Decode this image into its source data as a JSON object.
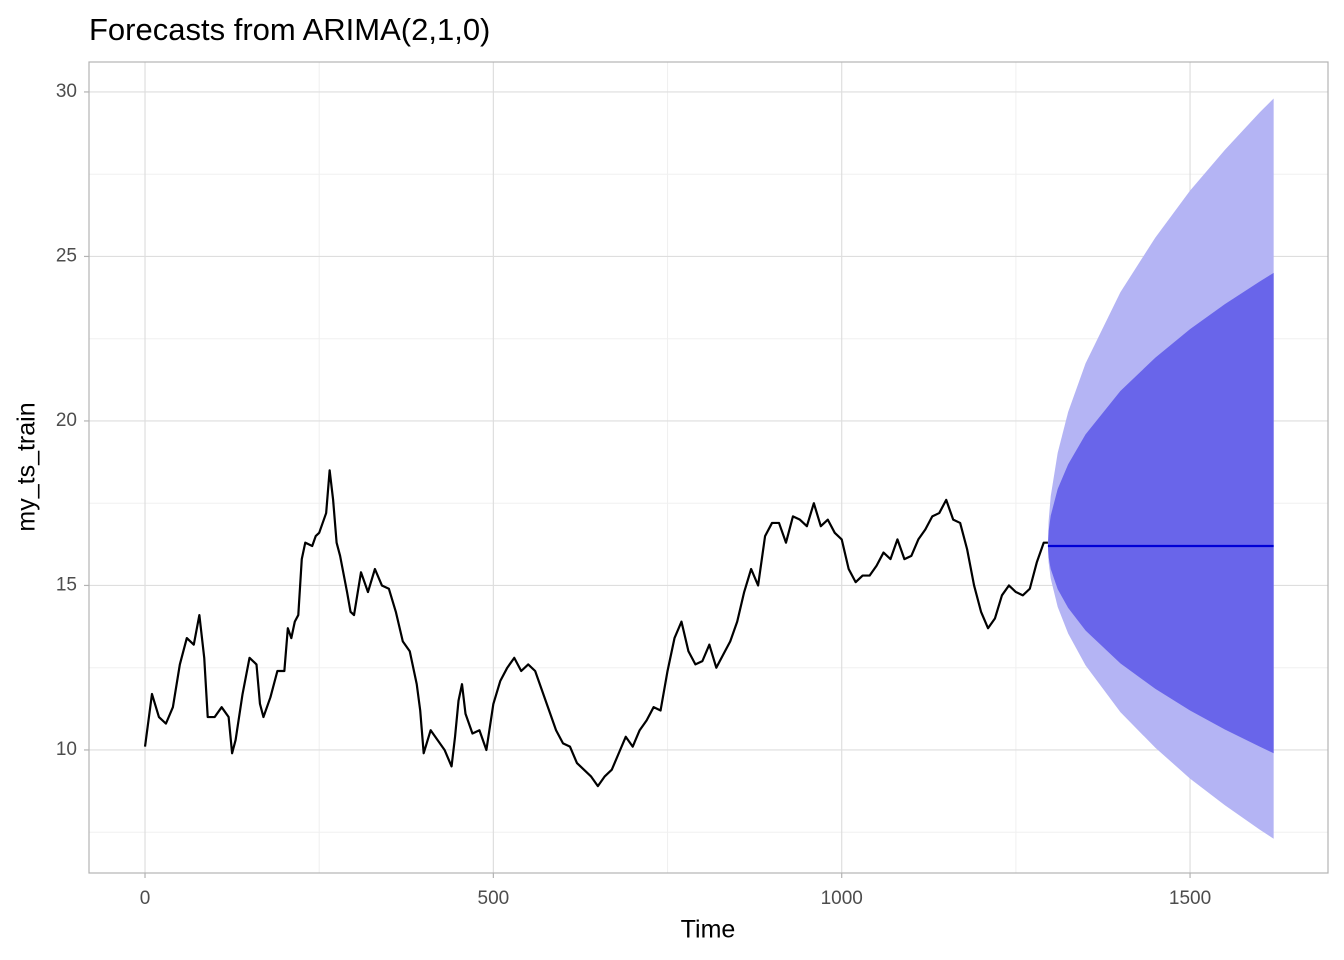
{
  "chart_data": {
    "type": "line",
    "title": "Forecasts from ARIMA(2,1,0)",
    "x_label": "Time",
    "y_label": "my_ts_train",
    "xlim": [
      -80.4,
      1698
    ],
    "ylim": [
      6.26,
      30.91
    ],
    "xticks": [
      0,
      500,
      1000,
      1500
    ],
    "yticks": [
      10,
      15,
      20,
      25,
      30
    ],
    "xminor_ticks": [
      250,
      750,
      1250
    ],
    "yminor_ticks": [
      7.5,
      12.5,
      17.5,
      22.5,
      27.5
    ],
    "grid": true,
    "bands": [
      {
        "color": "#b4b4f4",
        "x": [
          1296,
          1297,
          1300,
          1310,
          1325,
          1350,
          1400,
          1450,
          1500,
          1550,
          1600,
          1620
        ],
        "upper": [
          16.2,
          16.96,
          17.71,
          19.03,
          20.27,
          21.75,
          23.91,
          25.57,
          27.0,
          28.24,
          29.38,
          29.8
        ],
        "lower": [
          16.2,
          15.7,
          15.21,
          14.35,
          13.54,
          12.57,
          11.15,
          10.07,
          9.13,
          8.32,
          7.58,
          7.3
        ]
      },
      {
        "color": "#6965ea",
        "x": [
          1296,
          1297,
          1300,
          1310,
          1325,
          1350,
          1400,
          1450,
          1500,
          1550,
          1600,
          1620
        ],
        "upper": [
          16.2,
          16.66,
          17.12,
          17.93,
          18.68,
          19.59,
          20.91,
          21.92,
          22.79,
          23.55,
          24.24,
          24.5
        ],
        "lower": [
          16.2,
          15.85,
          15.5,
          14.89,
          14.32,
          13.63,
          12.63,
          11.86,
          11.2,
          10.62,
          10.1,
          9.9
        ]
      }
    ],
    "series": [
      {
        "color": "#000000",
        "x": [
          0,
          10,
          20,
          30,
          40,
          50,
          60,
          70,
          78,
          85,
          90,
          100,
          110,
          120,
          125,
          130,
          140,
          150,
          160,
          165,
          170,
          180,
          190,
          200,
          205,
          210,
          215,
          220,
          225,
          230,
          240,
          245,
          250,
          260,
          265,
          270,
          275,
          280,
          290,
          295,
          300,
          310,
          320,
          330,
          340,
          350,
          360,
          370,
          380,
          390,
          395,
          400,
          410,
          420,
          430,
          440,
          445,
          450,
          455,
          460,
          470,
          480,
          490,
          500,
          510,
          520,
          530,
          540,
          550,
          560,
          570,
          580,
          590,
          600,
          610,
          620,
          630,
          640,
          650,
          660,
          670,
          680,
          690,
          700,
          710,
          720,
          730,
          740,
          750,
          760,
          770,
          780,
          790,
          800,
          810,
          820,
          830,
          840,
          850,
          860,
          870,
          880,
          890,
          900,
          910,
          920,
          930,
          940,
          950,
          960,
          970,
          980,
          990,
          1000,
          1010,
          1020,
          1030,
          1040,
          1050,
          1060,
          1070,
          1080,
          1090,
          1100,
          1110,
          1120,
          1130,
          1140,
          1150,
          1160,
          1170,
          1180,
          1190,
          1200,
          1210,
          1220,
          1230,
          1240,
          1250,
          1260,
          1270,
          1280,
          1290,
          1296
        ],
        "values": [
          10.1,
          11.7,
          11.0,
          10.8,
          11.3,
          12.6,
          13.4,
          13.2,
          14.1,
          12.8,
          11.0,
          11.0,
          11.3,
          11.0,
          9.9,
          10.3,
          11.7,
          12.8,
          12.6,
          11.4,
          11.0,
          11.6,
          12.4,
          12.4,
          13.7,
          13.4,
          13.9,
          14.1,
          15.8,
          16.3,
          16.2,
          16.5,
          16.6,
          17.2,
          18.5,
          17.6,
          16.3,
          15.9,
          14.8,
          14.2,
          14.1,
          15.4,
          14.8,
          15.5,
          15.0,
          14.9,
          14.2,
          13.3,
          13.0,
          12.0,
          11.2,
          9.9,
          10.6,
          10.3,
          10.0,
          9.5,
          10.4,
          11.5,
          12.0,
          11.1,
          10.5,
          10.6,
          10.0,
          11.4,
          12.1,
          12.5,
          12.8,
          12.4,
          12.6,
          12.4,
          11.8,
          11.2,
          10.6,
          10.2,
          10.1,
          9.6,
          9.4,
          9.2,
          8.9,
          9.2,
          9.4,
          9.9,
          10.4,
          10.1,
          10.6,
          10.9,
          11.3,
          11.2,
          12.4,
          13.4,
          13.9,
          13.0,
          12.6,
          12.7,
          13.2,
          12.5,
          12.9,
          13.3,
          13.9,
          14.8,
          15.5,
          15.0,
          16.5,
          16.9,
          16.9,
          16.3,
          17.1,
          17.0,
          16.8,
          17.5,
          16.8,
          17.0,
          16.6,
          16.4,
          15.5,
          15.1,
          15.3,
          15.3,
          15.6,
          16.0,
          15.8,
          16.4,
          15.8,
          15.9,
          16.4,
          16.7,
          17.1,
          17.2,
          17.6,
          17.0,
          16.9,
          16.1,
          15.0,
          14.2,
          13.7,
          14.0,
          14.7,
          15.0,
          14.8,
          14.7,
          14.9,
          15.7,
          16.3,
          16.3
        ]
      },
      {
        "color": "#0000d6",
        "x": [
          1296,
          1620
        ],
        "values": [
          16.2,
          16.2
        ]
      }
    ]
  }
}
